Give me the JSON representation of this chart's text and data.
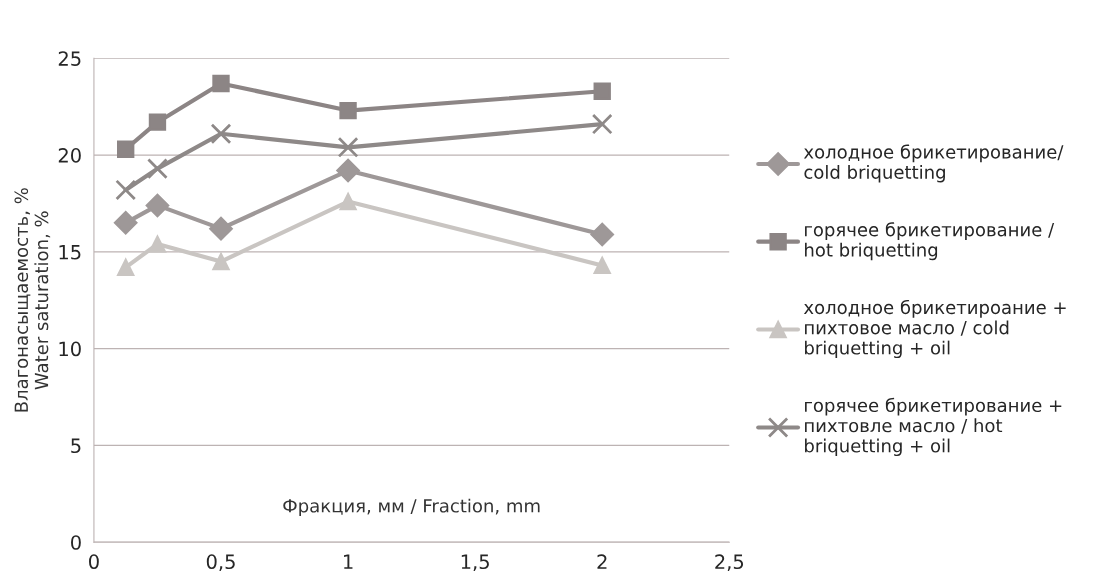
{
  "chart_data": {
    "type": "line",
    "xlabel": "Фракция, мм / Fraction, mm",
    "ylabel": "Влагонасыщаемость, %\nWater saturation, %",
    "x": [
      0.125,
      0.25,
      0.5,
      1,
      2
    ],
    "series": [
      {
        "name": "холодное брикетирование/\ncold briquetting",
        "color": "#9e9898",
        "marker": "diamond",
        "values": [
          16.5,
          17.4,
          16.2,
          19.2,
          15.9
        ]
      },
      {
        "name": "горячее брикетирование /\nhot briquetting",
        "color": "#8c8585",
        "marker": "square",
        "values": [
          20.3,
          21.7,
          23.7,
          22.3,
          23.3
        ]
      },
      {
        "name": "холодное брикетироание +\nпихтовое масло / cold\nbriquetting + oil",
        "color": "#c9c5c2",
        "marker": "triangle",
        "values": [
          14.2,
          15.4,
          14.5,
          17.6,
          14.3
        ]
      },
      {
        "name": "горячее брикетирование +\nпихтовле масло / hot\nbriquetting + oil",
        "color": "#8e8988",
        "marker": "cross",
        "values": [
          18.2,
          19.3,
          21.1,
          20.4,
          21.6
        ]
      }
    ],
    "xlim": [
      0,
      2.5
    ],
    "ylim": [
      0,
      25
    ],
    "xticks": [
      0,
      {
        "value": 0.5,
        "label": "0,5"
      },
      1,
      {
        "value": 1.5,
        "label": "1,5"
      },
      2,
      {
        "value": 2.5,
        "label": "2,5"
      }
    ],
    "yticks": [
      0,
      5,
      10,
      15,
      20,
      25
    ],
    "grid": "y",
    "legend": "right",
    "line_style": "solid"
  }
}
